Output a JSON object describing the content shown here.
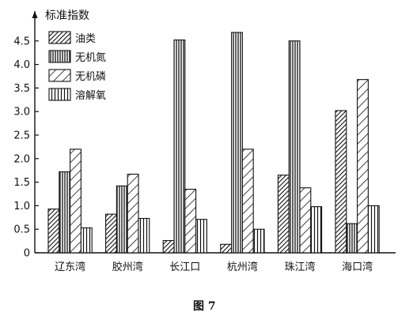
{
  "chart_data": {
    "type": "bar",
    "ylabel": "标准指数",
    "xlabel": "",
    "caption": "图 7",
    "ylim": [
      0,
      5
    ],
    "yticks": [
      "0",
      "0.5",
      "1.0",
      "1.5",
      "2.0",
      "2.5",
      "3.0",
      "3.5",
      "4.0",
      "4.5"
    ],
    "yticks_values": [
      0,
      0.5,
      1.0,
      1.5,
      2.0,
      2.5,
      3.0,
      3.5,
      4.0,
      4.5
    ],
    "categories": [
      "辽东湾",
      "胶州湾",
      "长江口",
      "杭州湾",
      "珠江湾",
      "海口湾"
    ],
    "legend_position": "top-left",
    "grid": false,
    "series": [
      {
        "name": "油类",
        "pattern": "dense-diagonal",
        "values": [
          0.93,
          0.82,
          0.26,
          0.18,
          1.65,
          3.02
        ]
      },
      {
        "name": "无机氮",
        "pattern": "vertical-dense",
        "values": [
          1.72,
          1.42,
          4.52,
          4.68,
          4.5,
          0.62
        ]
      },
      {
        "name": "无机磷",
        "pattern": "sparse-diagonal",
        "values": [
          2.2,
          1.67,
          1.35,
          2.2,
          1.38,
          3.68
        ]
      },
      {
        "name": "溶解氧",
        "pattern": "vertical-sparse",
        "values": [
          0.53,
          0.73,
          0.71,
          0.5,
          0.98,
          1.0
        ]
      }
    ]
  }
}
